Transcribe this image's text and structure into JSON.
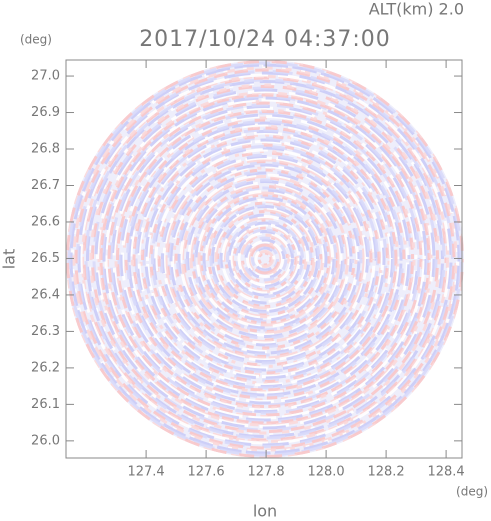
{
  "chart_data": {
    "type": "image",
    "title": "2017/10/24 04:37:00",
    "annotation": "ALT(km) 2.0",
    "x_label": "lon",
    "y_label": "lat",
    "x_unit": "(deg)",
    "y_unit": "(deg)",
    "xlim": [
      127.133,
      128.453
    ],
    "ylim": [
      25.953,
      27.044
    ],
    "xticks": [
      127.4,
      127.6,
      127.8,
      {
        "value": 128.0,
        "label": "128.0"
      },
      128.2,
      128.4
    ],
    "yticks": [
      {
        "value": 26.0,
        "label": "26.0"
      },
      26.1,
      26.2,
      26.3,
      26.4,
      26.5,
      26.6,
      26.7,
      26.8,
      26.9,
      {
        "value": 27.0,
        "label": "27.0"
      }
    ]
  }
}
